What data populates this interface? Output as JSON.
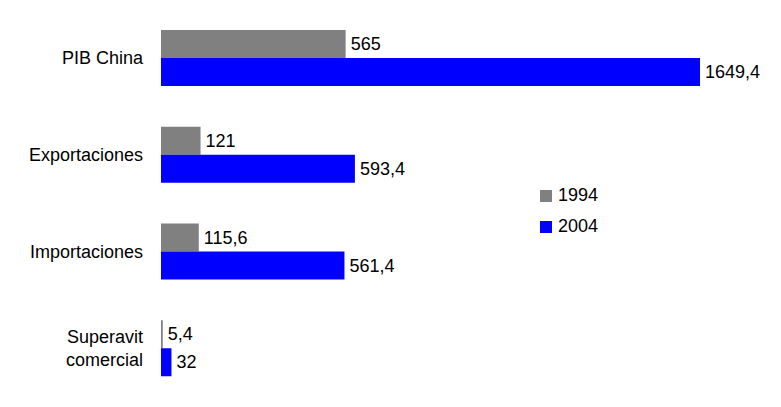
{
  "chart_data": {
    "type": "bar",
    "orientation": "horizontal",
    "categories": [
      "PIB China",
      "Exportaciones",
      "Importaciones",
      "Superavit comercial"
    ],
    "series": [
      {
        "name": "1994",
        "color": "#808080",
        "values": [
          565,
          121,
          115.6,
          5.4
        ],
        "value_labels": [
          "565",
          "121",
          "115,6",
          "5,4"
        ]
      },
      {
        "name": "2004",
        "color": "#0000ff",
        "values": [
          1649.4,
          593.4,
          561.4,
          32
        ],
        "value_labels": [
          "1649,4",
          "593,4",
          "561,4",
          "32"
        ]
      }
    ],
    "data_labels": true,
    "tick_labels": "y",
    "legend": "right",
    "grid": false
  }
}
